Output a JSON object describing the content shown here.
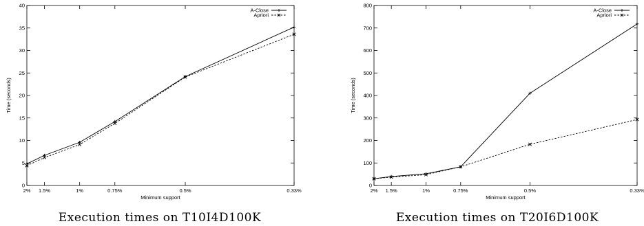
{
  "chart_data": [
    {
      "type": "line",
      "caption": "Execution times on T10I4D100K",
      "xlabel": "Minimum support",
      "ylabel": "Time (seconds)",
      "categories": [
        "2%",
        "1.5%",
        "1%",
        "0.75%",
        "0.5%",
        "0.33%"
      ],
      "x": [
        2,
        1.5,
        1,
        0.75,
        0.5,
        0.33
      ],
      "x_scale": "reciprocal",
      "ylim": [
        0,
        40
      ],
      "yticks": [
        0,
        5,
        10,
        15,
        20,
        25,
        30,
        35,
        40
      ],
      "grid": false,
      "legend_position": "top-right",
      "series": [
        {
          "name": "A-Close",
          "style": "solid",
          "marker": "plus",
          "values": [
            4.8,
            6.7,
            9.6,
            14.2,
            24.2,
            35.2
          ]
        },
        {
          "name": "Apriori",
          "style": "dashed",
          "marker": "cross",
          "values": [
            4.4,
            6.2,
            9.1,
            13.8,
            24.1,
            33.6
          ]
        }
      ]
    },
    {
      "type": "line",
      "caption": "Execution times on T20I6D100K",
      "xlabel": "Minimum support",
      "ylabel": "Time (seconds)",
      "categories": [
        "2%",
        "1.5%",
        "1%",
        "0.75%",
        "0.5%",
        "0.33%"
      ],
      "x": [
        2,
        1.5,
        1,
        0.75,
        0.5,
        0.33
      ],
      "x_scale": "reciprocal",
      "ylim": [
        0,
        800
      ],
      "yticks": [
        0,
        100,
        200,
        300,
        400,
        500,
        600,
        700,
        800
      ],
      "grid": false,
      "legend_position": "top-right",
      "series": [
        {
          "name": "A-Close",
          "style": "solid",
          "marker": "plus",
          "values": [
            30,
            40,
            52,
            83,
            410,
            718
          ]
        },
        {
          "name": "Apriori",
          "style": "dashed",
          "marker": "cross",
          "values": [
            30,
            37,
            48,
            83,
            183,
            293
          ]
        }
      ]
    }
  ]
}
